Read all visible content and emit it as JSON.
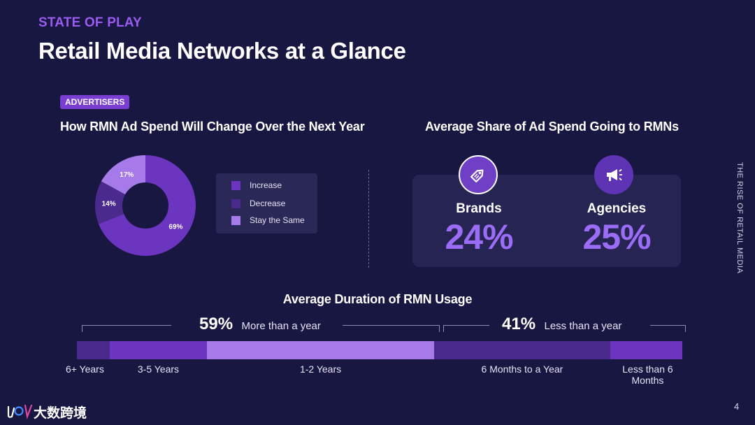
{
  "header": {
    "eyebrow": "STATE OF PLAY",
    "title": "Retail Media Networks at a Glance"
  },
  "tag": "ADVERTISERS",
  "side_label": "THE RISE OF RETAIL MEDIA",
  "page_number": "4",
  "footer_logo": "大数跨境",
  "colors": {
    "background": "#181742",
    "accent": "#9a5cf0",
    "increase": "#6b35c0",
    "decrease": "#4a2a8c",
    "stay": "#a67ae8"
  },
  "chart_data": [
    {
      "type": "pie",
      "variant": "donut",
      "title": "How RMN Ad Spend Will Change Over the Next Year",
      "categories": [
        "Increase",
        "Decrease",
        "Stay the Same"
      ],
      "values": [
        69,
        14,
        17
      ],
      "data_labels": [
        "69%",
        "14%",
        "17%"
      ],
      "legend_position": "right"
    },
    {
      "type": "table",
      "title": "Average Share of Ad Spend Going to RMNs",
      "categories": [
        "Brands",
        "Agencies"
      ],
      "values": [
        24,
        25
      ],
      "data_labels": [
        "24%",
        "25%"
      ],
      "icons": [
        "price-tag-icon",
        "megaphone-icon"
      ]
    },
    {
      "type": "bar",
      "variant": "stacked-horizontal",
      "title": "Average Duration of RMN Usage",
      "categories": [
        "6+ Years",
        "3-5 Years",
        "1-2 Years",
        "6 Months to a Year",
        "Less than 6 Months"
      ],
      "values": [
        5.4,
        16.1,
        37.5,
        29.1,
        11.9
      ],
      "unit": "%",
      "groups": [
        {
          "pct": "59%",
          "label": "More than a year",
          "members": [
            0,
            1,
            2
          ]
        },
        {
          "pct": "41%",
          "label": "Less than a year",
          "members": [
            3,
            4
          ]
        }
      ]
    }
  ]
}
